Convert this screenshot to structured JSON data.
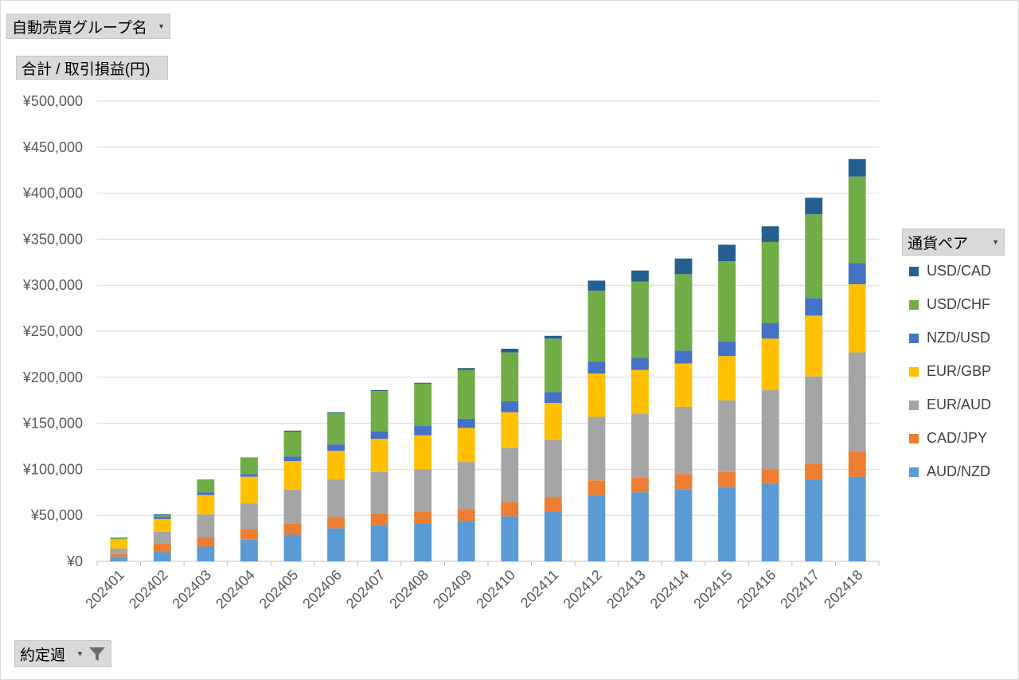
{
  "filters": {
    "group_field": "自動売買グループ名",
    "value_field": "合計 / 取引損益(円)",
    "week_field": "約定週",
    "legend_field": "通貨ペア"
  },
  "chart_data": {
    "type": "bar",
    "stacked": true,
    "categories": [
      "202401",
      "202402",
      "202403",
      "202404",
      "202405",
      "202406",
      "202407",
      "202408",
      "202409",
      "202410",
      "202411",
      "202412",
      "202413",
      "202414",
      "202415",
      "202416",
      "202417",
      "202418"
    ],
    "ylim": [
      0,
      500000
    ],
    "yticks": [
      0,
      50000,
      100000,
      150000,
      200000,
      250000,
      300000,
      350000,
      400000,
      450000,
      500000
    ],
    "ytick_labels": [
      "¥0",
      "¥50,000",
      "¥100,000",
      "¥150,000",
      "¥200,000",
      "¥250,000",
      "¥300,000",
      "¥350,000",
      "¥400,000",
      "¥450,000",
      "¥500,000"
    ],
    "series": [
      {
        "name": "AUD/NZD",
        "color": "#5b9bd5",
        "values": [
          5000,
          10000,
          16000,
          24000,
          29000,
          36000,
          39000,
          41000,
          44000,
          49000,
          54000,
          72000,
          75000,
          78000,
          81000,
          84000,
          89000,
          92000
        ]
      },
      {
        "name": "CAD/JPY",
        "color": "#ed7d31",
        "values": [
          3000,
          9000,
          10000,
          11000,
          12000,
          12000,
          13000,
          13000,
          13000,
          15000,
          16000,
          16000,
          16000,
          17000,
          16000,
          16000,
          17000,
          28000
        ]
      },
      {
        "name": "EUR/AUD",
        "color": "#a5a5a5",
        "values": [
          6000,
          13000,
          25000,
          28000,
          37000,
          41000,
          45000,
          46000,
          51000,
          59000,
          62000,
          69000,
          69000,
          73000,
          78000,
          86000,
          95000,
          107000
        ]
      },
      {
        "name": "EUR/GBP",
        "color": "#ffc000",
        "values": [
          10000,
          14000,
          21000,
          29000,
          31000,
          31000,
          36000,
          37000,
          37000,
          39000,
          40000,
          47000,
          48000,
          47000,
          48000,
          56000,
          66000,
          74000
        ]
      },
      {
        "name": "NZD/USD",
        "color": "#4472c4",
        "values": [
          0,
          2000,
          3000,
          3000,
          5000,
          7000,
          8000,
          10000,
          10000,
          12000,
          12000,
          13000,
          13000,
          14000,
          16000,
          17000,
          19000,
          23000
        ]
      },
      {
        "name": "USD/CHF",
        "color": "#70ad47",
        "values": [
          2000,
          2000,
          14000,
          18000,
          27000,
          34000,
          44000,
          46000,
          53000,
          53000,
          58000,
          77000,
          83000,
          83000,
          87000,
          88000,
          91000,
          94000
        ]
      },
      {
        "name": "USD/CAD",
        "color": "#255e91",
        "values": [
          0,
          1000,
          0,
          0,
          1000,
          1000,
          1000,
          1000,
          2000,
          4000,
          3000,
          11000,
          12000,
          17000,
          18000,
          17000,
          18000,
          19000
        ]
      }
    ],
    "legend_order": [
      "USD/CAD",
      "USD/CHF",
      "NZD/USD",
      "EUR/GBP",
      "EUR/AUD",
      "CAD/JPY",
      "AUD/NZD"
    ],
    "legend_position": "right"
  }
}
